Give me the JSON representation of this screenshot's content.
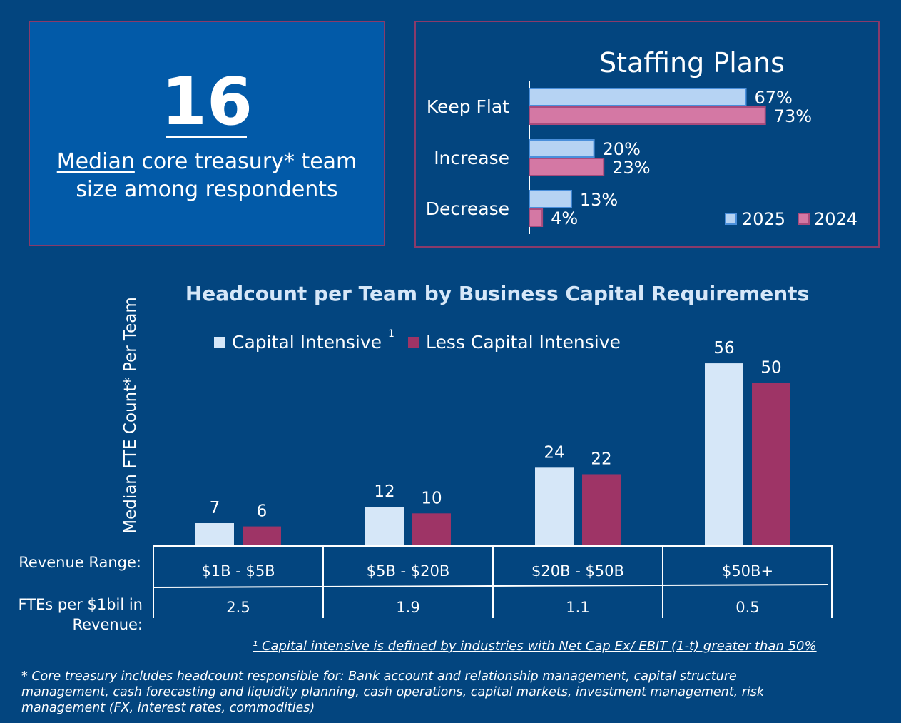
{
  "stat": {
    "number": "16",
    "desc_underlined": "Median",
    "desc_rest_line1": " core treasury* team",
    "desc_line2": "size among respondents"
  },
  "chart_data": [
    {
      "type": "bar",
      "orientation": "horizontal",
      "title": "Staffing Plans",
      "categories": [
        "Keep Flat",
        "Increase",
        "Decrease"
      ],
      "series": [
        {
          "name": "2025",
          "values": [
            67,
            20,
            13
          ],
          "labels": [
            "67%",
            "20%",
            "13%"
          ],
          "color": "#b6d3f3",
          "stroke": "#4a8fdb"
        },
        {
          "name": "2024",
          "values": [
            73,
            23,
            4
          ],
          "labels": [
            "73%",
            "23%",
            "4%"
          ],
          "color": "#d478a4",
          "stroke": "#a84b7c"
        }
      ],
      "xlim": [
        0,
        100
      ],
      "legend": "bottom-right"
    },
    {
      "type": "bar",
      "orientation": "vertical",
      "title": "Headcount per Team by Business Capital Requirements",
      "ylabel": "Median FTE Count* Per Team",
      "categories": [
        "$1B - $5B",
        "$5B - $20B",
        "$20B - $50B",
        "$50B+"
      ],
      "series": [
        {
          "name": "Capital Intensive",
          "values": [
            7,
            12,
            24,
            56
          ],
          "color": "#d6e7f8"
        },
        {
          "name": "Less Capital Intensive",
          "values": [
            6,
            10,
            22,
            50
          ],
          "color": "#9e3466"
        }
      ],
      "legend_superscript": "1",
      "legend": "top",
      "ylim": [
        0,
        56
      ],
      "table": {
        "row1_label": "Revenue Range:",
        "row2_label_line1": "FTEs per $1bil in",
        "row2_label_line2": "Revenue:",
        "ftes_per_bil": [
          "2.5",
          "1.9",
          "1.1",
          "0.5"
        ]
      }
    }
  ],
  "footnotes": {
    "capital": "¹ Capital intensive is defined by industries with Net Cap Ex/ EBIT (1-t) greater than 50%",
    "core": "* Core treasury includes headcount responsible for: Bank account and relationship management, capital structure management, cash forecasting and liquidity planning, cash operations, capital markets, investment management, risk management (FX, interest rates, commodities)"
  }
}
